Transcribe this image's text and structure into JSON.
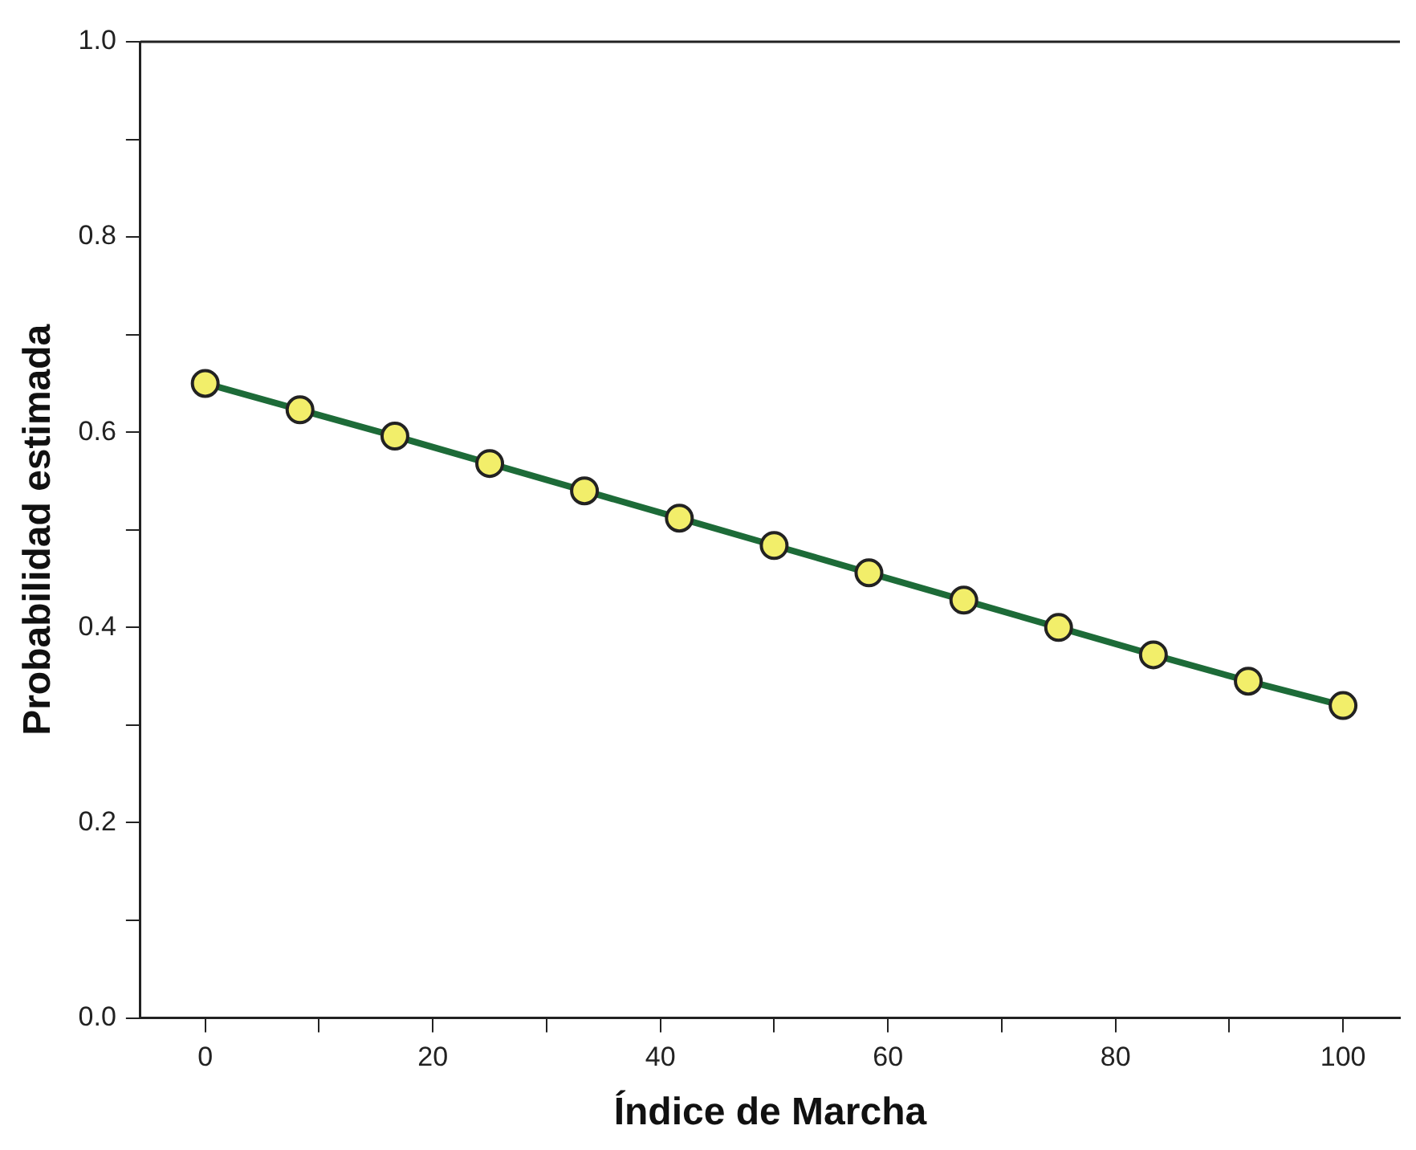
{
  "chart_data": {
    "type": "line",
    "xlabel": "Índice de Marcha",
    "ylabel": "Probabilidad estimada",
    "x": [
      0,
      8.33,
      16.67,
      25,
      33.33,
      41.67,
      50,
      58.33,
      66.67,
      75,
      83.33,
      91.67,
      100
    ],
    "series": [
      {
        "color": "#1d6b38",
        "values": [
          0.65,
          0.623,
          0.596,
          0.568,
          0.54,
          0.512,
          0.484,
          0.456,
          0.428,
          0.4,
          0.372,
          0.345,
          0.32
        ]
      }
    ],
    "xlim": [
      -5.7,
      105
    ],
    "ylim": [
      0,
      1
    ],
    "xticks": [
      0,
      {
        "value": 10,
        "label": null
      },
      20,
      {
        "value": 30,
        "label": null
      },
      40,
      {
        "value": 50,
        "label": null
      },
      60,
      {
        "value": 70,
        "label": null
      },
      80,
      {
        "value": 90,
        "label": null
      },
      100
    ],
    "yticks": [
      {
        "value": 0,
        "label": "0.0"
      },
      {
        "value": 0.1,
        "label": null
      },
      0.2,
      {
        "value": 0.3,
        "label": null
      },
      0.4,
      {
        "value": 0.5,
        "label": null
      },
      0.6,
      {
        "value": 0.7,
        "label": null
      },
      0.8,
      {
        "value": 0.9,
        "label": null
      },
      {
        "value": 1,
        "label": "1.0"
      }
    ],
    "grid": false,
    "legend": false,
    "marker": "circle",
    "line_style": "solid"
  }
}
